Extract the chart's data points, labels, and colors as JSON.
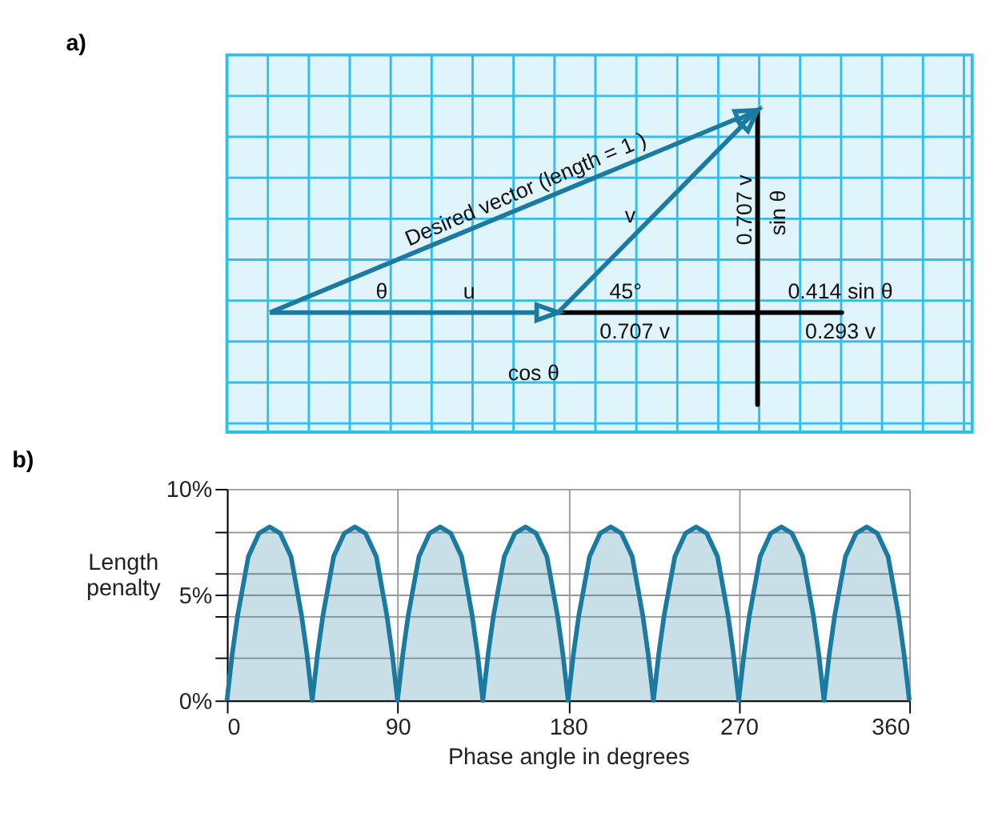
{
  "chart_data": [
    {
      "type": "other",
      "title": "a)",
      "annotations": [
        "Desired vector (length = 1 )",
        "θ",
        "u",
        "v",
        "45°",
        "0.707 v",
        "sin θ",
        "0.414 sin θ",
        "0.707 v",
        "0.293 v",
        "cos θ"
      ]
    },
    {
      "type": "area",
      "title": "b)",
      "xlabel": "Phase angle in degrees",
      "ylabel": "Length penalty",
      "xlim": [
        0,
        360
      ],
      "xticks": [
        0,
        90,
        180,
        270,
        360
      ],
      "ylim": [
        0,
        10
      ],
      "yticks": [
        {
          "value": 0,
          "label": "0%"
        },
        {
          "value": 2,
          "label": null
        },
        {
          "value": 4,
          "label": null
        },
        {
          "value": 5,
          "label": "5%"
        },
        {
          "value": 6,
          "label": null
        },
        {
          "value": 8,
          "label": null
        },
        {
          "value": 10,
          "label": "10%"
        }
      ],
      "grid": true,
      "series": [
        {
          "color": "#1a7aa0",
          "x": [
            0,
            2.8,
            5.6,
            11.3,
            16.9,
            22.5,
            28.1,
            33.8,
            39.4,
            42.2,
            45,
            47.8,
            50.6,
            56.3,
            61.9,
            67.5,
            73.1,
            78.8,
            84.4,
            87.2,
            90,
            92.8,
            95.6,
            101.3,
            106.9,
            112.5,
            118.1,
            123.8,
            129.4,
            132.2,
            135,
            137.8,
            140.6,
            146.3,
            151.9,
            157.5,
            163.1,
            168.8,
            174.4,
            177.2,
            180,
            182.8,
            185.6,
            191.3,
            196.9,
            202.5,
            208.1,
            213.8,
            219.4,
            222.2,
            225,
            227.8,
            230.6,
            236.3,
            241.9,
            247.5,
            253.1,
            258.8,
            264.4,
            267.2,
            270,
            272.8,
            275.6,
            281.3,
            286.9,
            292.5,
            298.1,
            303.8,
            309.4,
            312.2,
            315,
            317.8,
            320.6,
            326.3,
            331.9,
            337.5,
            343.1,
            348.8,
            354.4,
            357.2,
            360
          ],
          "values": [
            0,
            2.2,
            4.0,
            6.8,
            7.9,
            8.2,
            7.9,
            6.8,
            4.0,
            2.2,
            0,
            2.2,
            4.0,
            6.8,
            7.9,
            8.2,
            7.9,
            6.8,
            4.0,
            2.2,
            0,
            2.2,
            4.0,
            6.8,
            7.9,
            8.2,
            7.9,
            6.8,
            4.0,
            2.2,
            0,
            2.2,
            4.0,
            6.8,
            7.9,
            8.2,
            7.9,
            6.8,
            4.0,
            2.2,
            0,
            2.2,
            4.0,
            6.8,
            7.9,
            8.2,
            7.9,
            6.8,
            4.0,
            2.2,
            0,
            2.2,
            4.0,
            6.8,
            7.9,
            8.2,
            7.9,
            6.8,
            4.0,
            2.2,
            0,
            2.2,
            4.0,
            6.8,
            7.9,
            8.2,
            7.9,
            6.8,
            4.0,
            2.2,
            0,
            2.2,
            4.0,
            6.8,
            7.9,
            8.2,
            7.9,
            6.8,
            4.0,
            2.2,
            0
          ]
        }
      ]
    }
  ]
}
